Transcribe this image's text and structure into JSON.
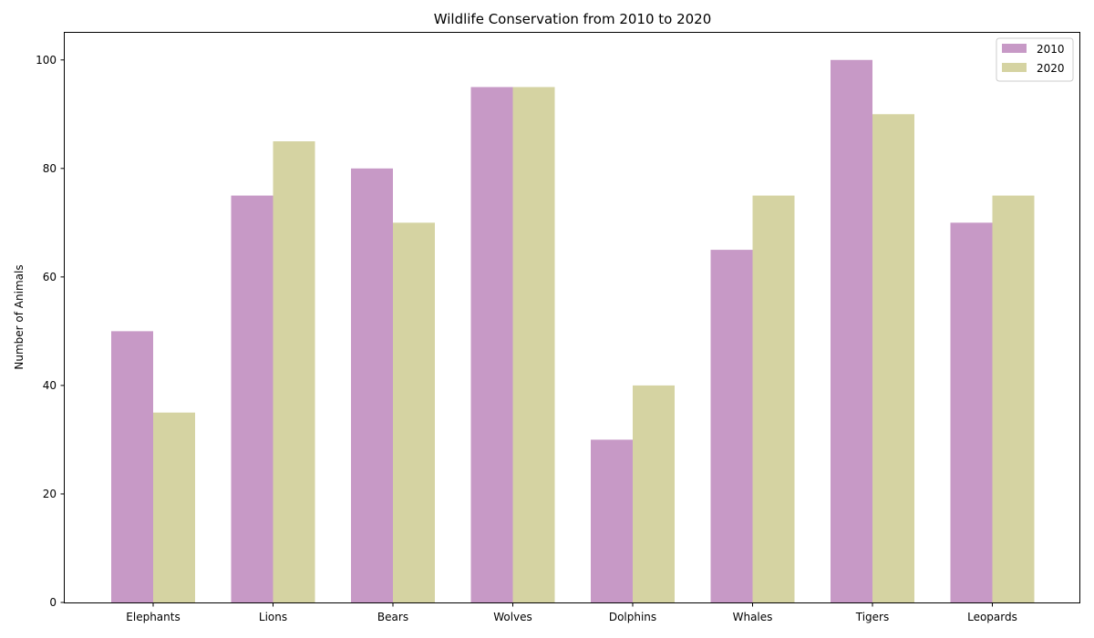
{
  "chart_data": {
    "type": "bar",
    "title": "Wildlife Conservation from 2010 to 2020",
    "xlabel": "",
    "ylabel": "Number of Animals",
    "categories": [
      "Elephants",
      "Lions",
      "Bears",
      "Wolves",
      "Dolphins",
      "Whales",
      "Tigers",
      "Leopards"
    ],
    "series": [
      {
        "name": "2010",
        "color": "#c799c6",
        "values": [
          50,
          75,
          80,
          95,
          30,
          65,
          100,
          70
        ]
      },
      {
        "name": "2020",
        "color": "#d5d3a2",
        "values": [
          35,
          85,
          70,
          95,
          40,
          75,
          90,
          75
        ]
      }
    ],
    "ylim": [
      0,
      105
    ],
    "yticks": [
      0,
      20,
      40,
      60,
      80,
      100
    ],
    "legend_position": "top-right",
    "grid": false
  }
}
